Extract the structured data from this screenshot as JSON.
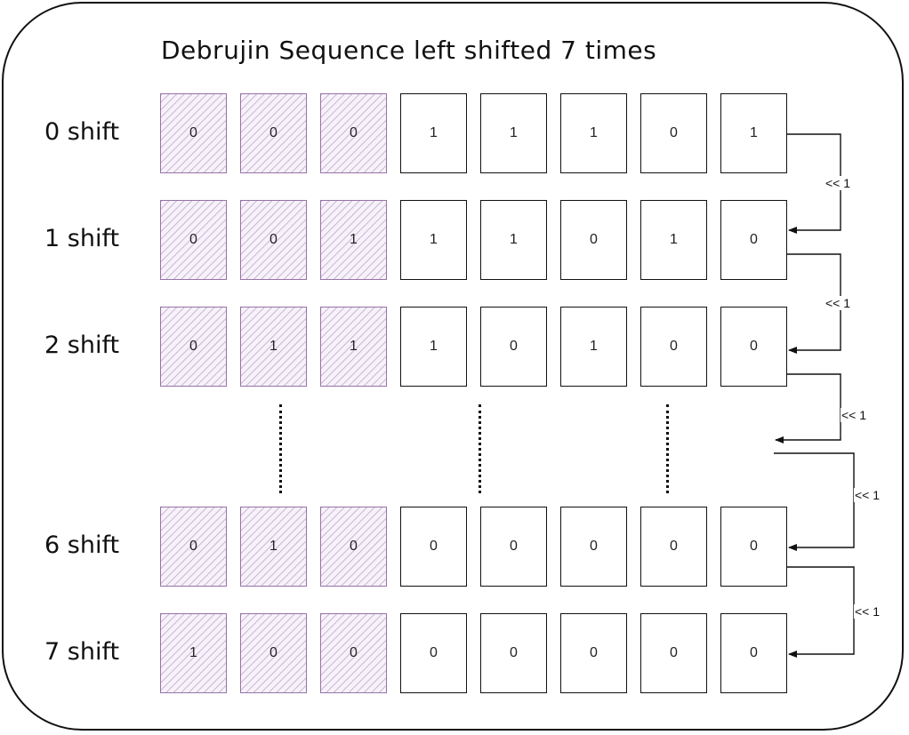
{
  "title": "Debrujin Sequence left shifted 7 times",
  "rows": [
    {
      "label": "0 shift",
      "bits": [
        "0",
        "0",
        "0",
        "1",
        "1",
        "1",
        "0",
        "1"
      ]
    },
    {
      "label": "1 shift",
      "bits": [
        "0",
        "0",
        "1",
        "1",
        "1",
        "0",
        "1",
        "0"
      ]
    },
    {
      "label": "2 shift",
      "bits": [
        "0",
        "1",
        "1",
        "1",
        "0",
        "1",
        "0",
        "0"
      ]
    },
    {
      "label": "6 shift",
      "bits": [
        "0",
        "1",
        "0",
        "0",
        "0",
        "0",
        "0",
        "0"
      ]
    },
    {
      "label": "7 shift",
      "bits": [
        "1",
        "0",
        "0",
        "0",
        "0",
        "0",
        "0",
        "0"
      ]
    }
  ],
  "highlighted_bit_count": 3,
  "shift_op_label": "<< 1",
  "colors": {
    "highlight_border": "#9673a6",
    "highlight_hatch": "#c9b3d6",
    "stroke": "#111111"
  }
}
